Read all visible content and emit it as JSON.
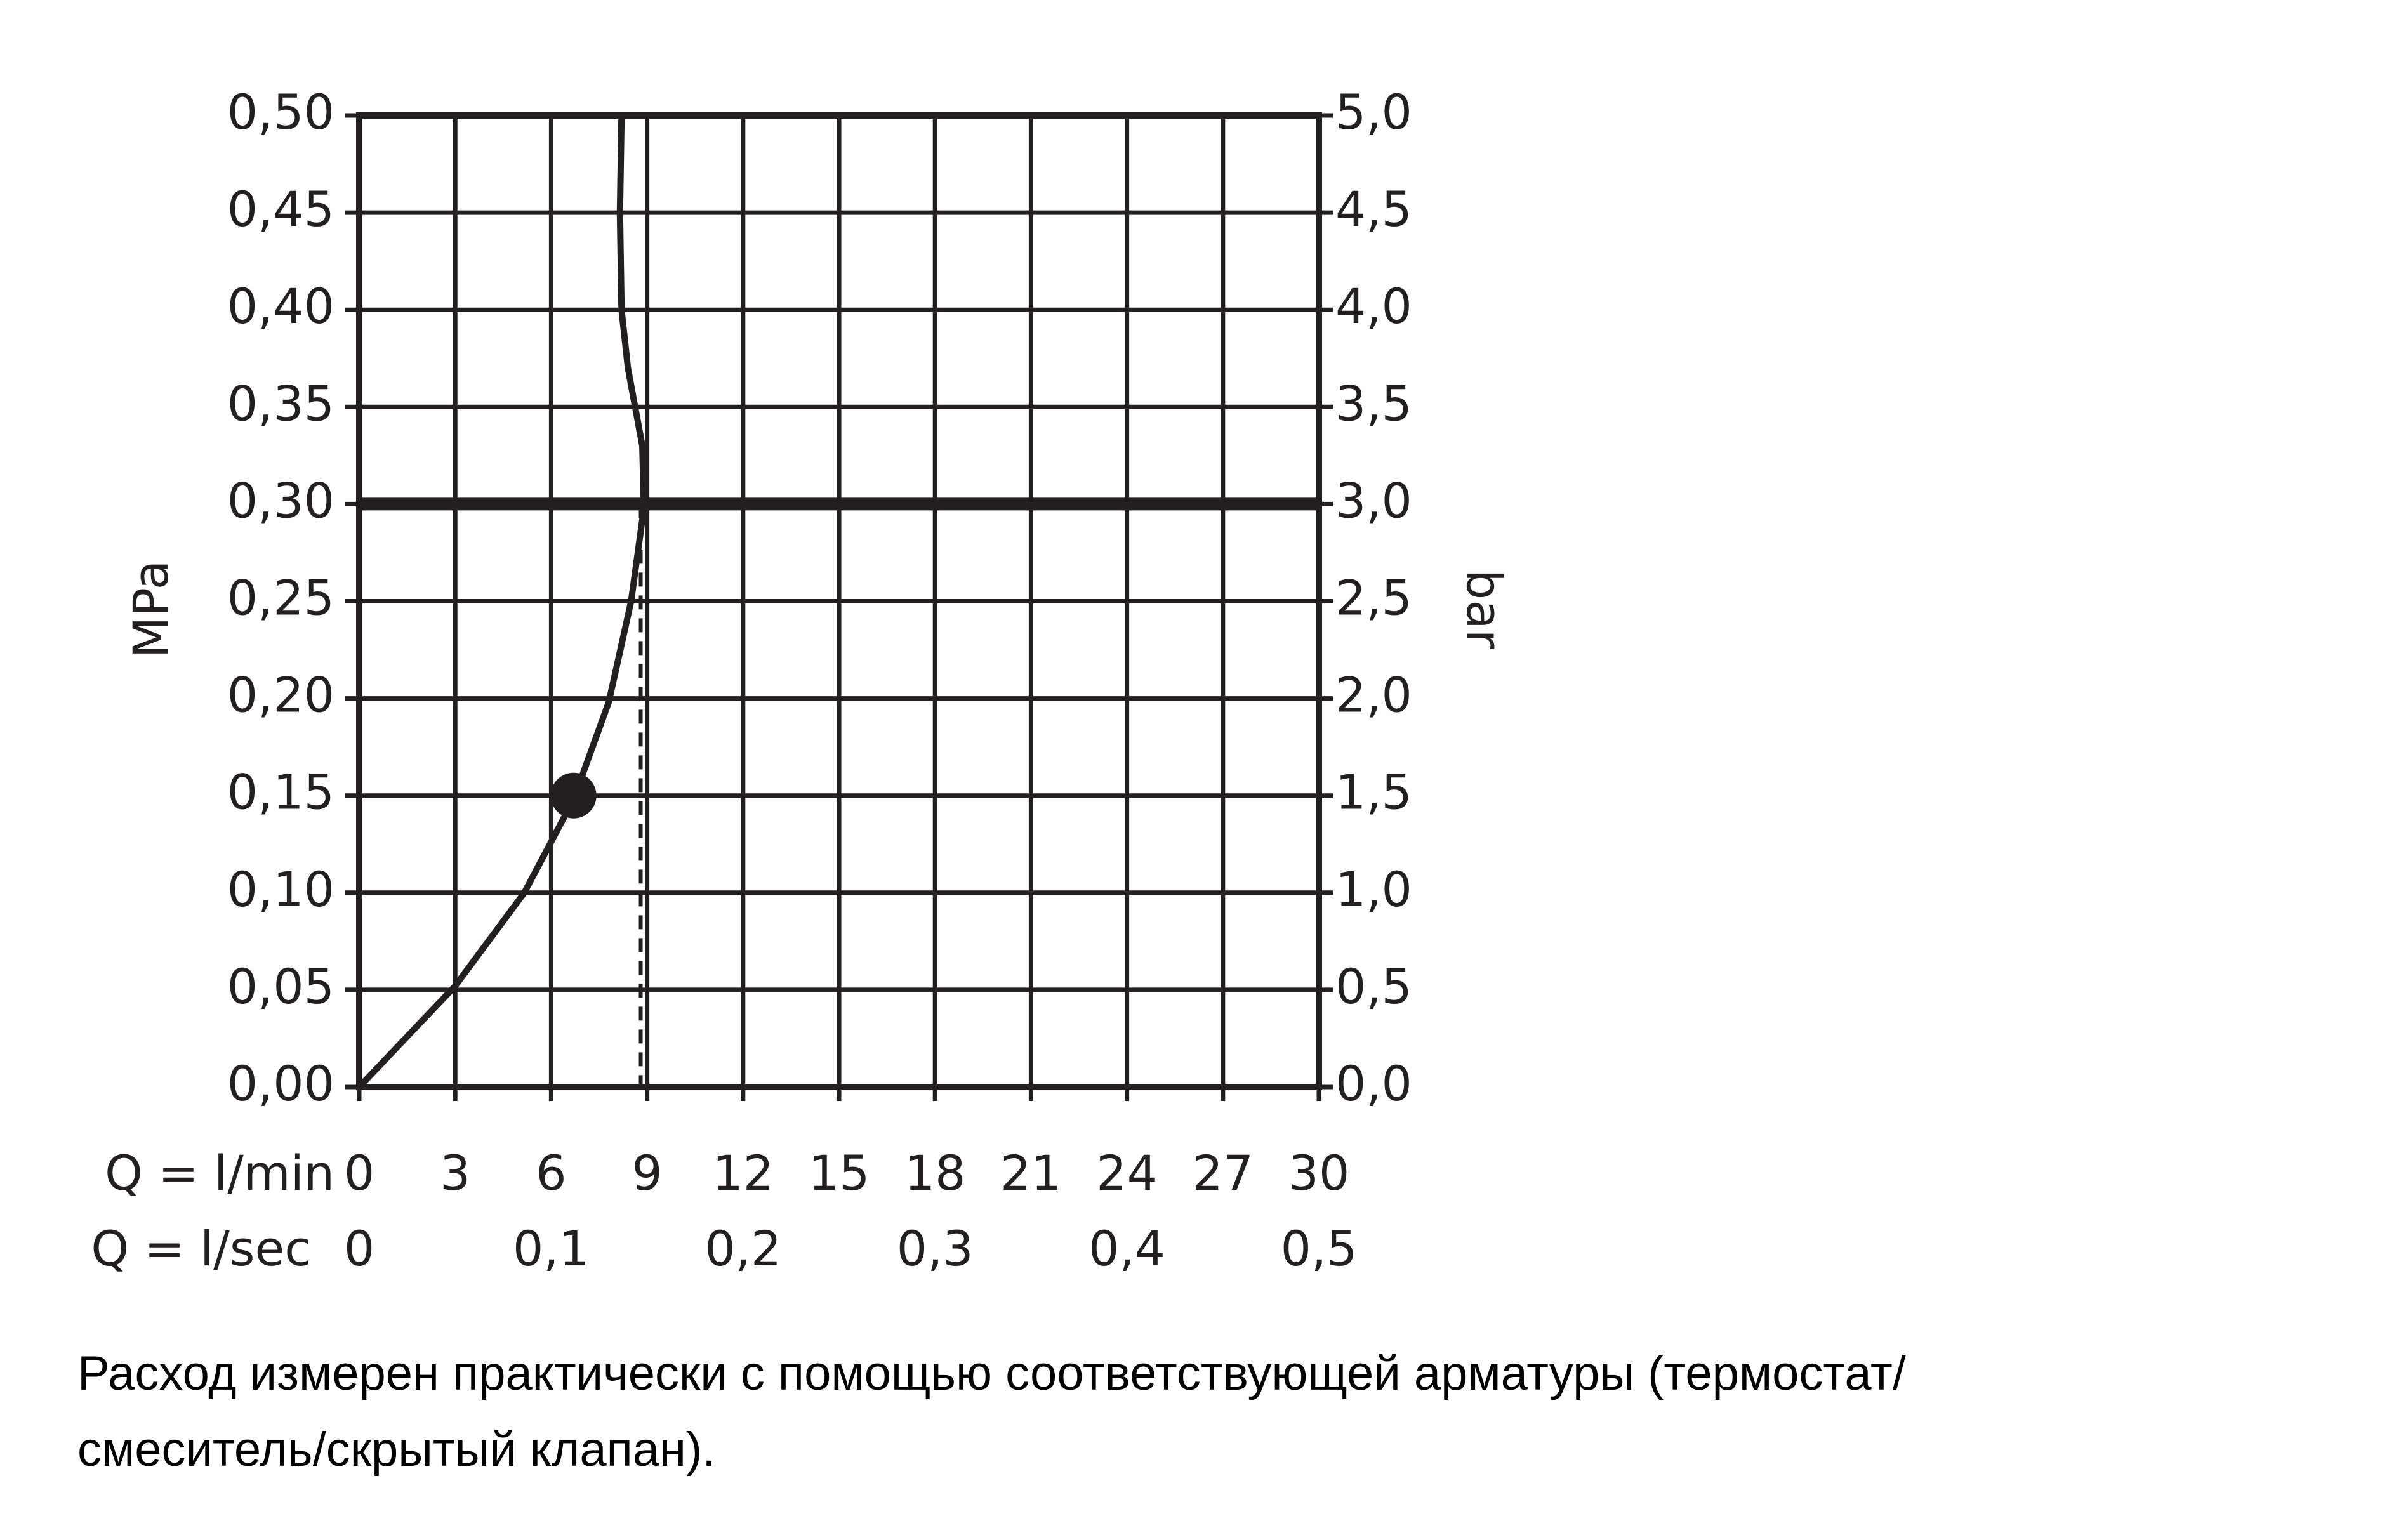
{
  "chart_data": {
    "type": "line",
    "x": [
      0,
      3,
      5.16,
      6.7,
      7.8,
      8.5,
      8.9,
      8.85,
      8.4,
      8.2,
      8.15,
      8.2
    ],
    "values": [
      0,
      0.052,
      0.1,
      0.148,
      0.198,
      0.25,
      0.298,
      0.33,
      0.37,
      0.4,
      0.45,
      0.5
    ],
    "color": "#231f20",
    "highlight": {
      "x": 6.7,
      "y": 0.15
    },
    "hline": 0.3,
    "dashed_x": 8.8,
    "xlim": [
      0,
      30
    ],
    "xticks": [
      0,
      3,
      6,
      9,
      12,
      15,
      18,
      21,
      24,
      27,
      30
    ],
    "xlabel": "Q = l/min",
    "x2lim": [
      0,
      0.5
    ],
    "x2ticks": [
      0,
      {
        "value": 0.1,
        "label": "0,1"
      },
      {
        "value": 0.2,
        "label": "0,2"
      },
      {
        "value": 0.3,
        "label": "0,3"
      },
      {
        "value": 0.4,
        "label": "0,4"
      },
      {
        "value": 0.5,
        "label": "0,5"
      }
    ],
    "x2label": "Q = l/sec",
    "ylim": [
      0,
      0.5
    ],
    "yticks": [
      {
        "value": 0,
        "label": "0,00"
      },
      {
        "value": 0.05,
        "label": "0,05"
      },
      {
        "value": 0.1,
        "label": "0,10"
      },
      {
        "value": 0.15,
        "label": "0,15"
      },
      {
        "value": 0.2,
        "label": "0,20"
      },
      {
        "value": 0.25,
        "label": "0,25"
      },
      {
        "value": 0.3,
        "label": "0,30"
      },
      {
        "value": 0.35,
        "label": "0,35"
      },
      {
        "value": 0.4,
        "label": "0,40"
      },
      {
        "value": 0.45,
        "label": "0,45"
      },
      {
        "value": 0.5,
        "label": "0,50"
      }
    ],
    "ylabel": "MPa",
    "y2lim": [
      0,
      5
    ],
    "y2ticks": [
      {
        "value": 0,
        "label": "0,0"
      },
      {
        "value": 0.5,
        "label": "0,5"
      },
      {
        "value": 1,
        "label": "1,0"
      },
      {
        "value": 1.5,
        "label": "1,5"
      },
      {
        "value": 2,
        "label": "2,0"
      },
      {
        "value": 2.5,
        "label": "2,5"
      },
      {
        "value": 3,
        "label": "3,0"
      },
      {
        "value": 3.5,
        "label": "3,5"
      },
      {
        "value": 4,
        "label": "4,0"
      },
      {
        "value": 4.5,
        "label": "4,5"
      },
      {
        "value": 5,
        "label": "5,0"
      }
    ],
    "y2label": "bar",
    "grid": true,
    "note": [
      "Расход измерен практически с помощью соответствующей арматуры (термостат/",
      "смеситель/скрытый клапан)."
    ]
  }
}
